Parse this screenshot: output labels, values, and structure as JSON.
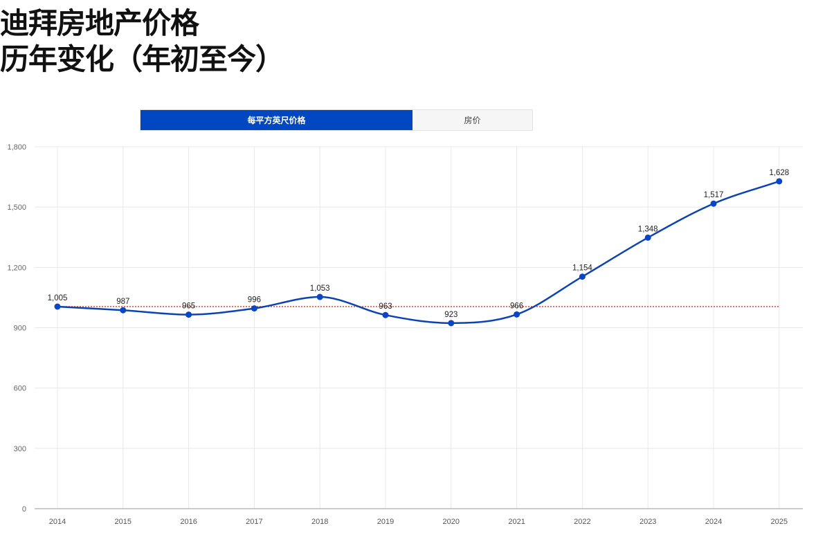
{
  "title": {
    "line1": "迪拜房地产价格",
    "line2": "历年变化（年初至今）"
  },
  "toggle": {
    "active_label": "每平方英尺价格",
    "inactive_label": "房价"
  },
  "colors": {
    "line": "#0b43b3",
    "point": "#0a45c6",
    "reference": "#e0402a",
    "grid": "#e8e8e8",
    "active_tab": "#0047c1"
  },
  "chart_data": {
    "type": "line",
    "x": [
      2014,
      2015,
      2016,
      2017,
      2018,
      2019,
      2020,
      2021,
      2022,
      2023,
      2024,
      2025
    ],
    "series": [
      {
        "values": [
          1005,
          987,
          965,
          996,
          1053,
          963,
          923,
          966,
          1154,
          1348,
          1517,
          1628
        ]
      }
    ],
    "data_labels": [
      "1,005",
      "987",
      "965",
      "996",
      "1,053",
      "963",
      "923",
      "966",
      "1,154",
      "1,348",
      "1,517",
      "1,628"
    ],
    "reference_line": {
      "value": 1005,
      "style": "dotted"
    },
    "ylim": [
      0,
      1800
    ],
    "y_ticks": [
      0,
      300,
      600,
      900,
      1200,
      1500,
      1800
    ],
    "y_tick_labels": [
      "0",
      "300",
      "600",
      "900",
      "1,200",
      "1,500",
      "1,800"
    ],
    "grid": true,
    "title": "",
    "xlabel": "",
    "ylabel": ""
  }
}
